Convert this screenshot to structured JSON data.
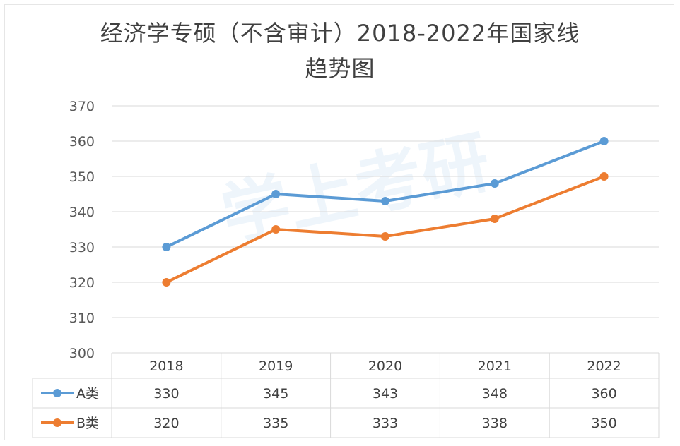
{
  "chart_data": {
    "type": "line",
    "title_lines": [
      "经济学专硕（不含审计）2018-2022年国家线",
      "趋势图"
    ],
    "categories": [
      "2018",
      "2019",
      "2020",
      "2021",
      "2022"
    ],
    "series": [
      {
        "name": "A类",
        "values": [
          330,
          345,
          343,
          348,
          360
        ],
        "color": "#5b9bd5"
      },
      {
        "name": "B类",
        "values": [
          320,
          335,
          333,
          338,
          350
        ],
        "color": "#ed7d31"
      }
    ],
    "ylim": [
      300,
      370
    ],
    "yticks": [
      300,
      310,
      320,
      330,
      340,
      350,
      360,
      370
    ],
    "grid": true,
    "legend": "data-table",
    "data_table": true,
    "watermark": "学上考研"
  }
}
